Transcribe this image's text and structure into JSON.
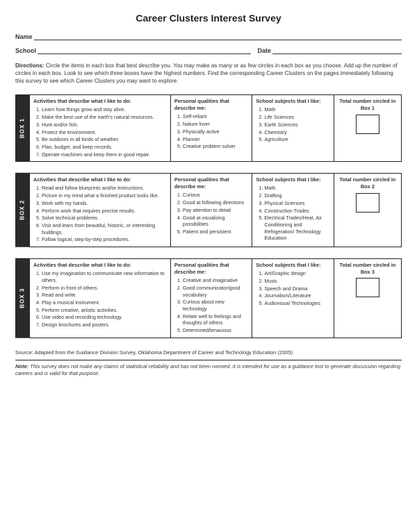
{
  "title": "Career Clusters Interest Survey",
  "fields": {
    "name_label": "Name",
    "school_label": "School",
    "date_label": "Date"
  },
  "directions_label": "Directions:",
  "directions_text": "Circle the items in each box that best describe you. You may make as many or as few circles in each box as you choose. Add up the number of circles in each box. Look to see which three boxes have the highest numbers. Find the corresponding Career Clusters on the pages immediately following this survey to see which Career Clusters you may want to explore.",
  "headers": {
    "activities": "Activities that describe what I like to do:",
    "qualities": "Personal qualities that describe me:",
    "subjects": "School subjects that I like:",
    "total_prefix": "Total number circled in"
  },
  "boxes": [
    {
      "tab": "BOX 1",
      "total_label": "Box 1",
      "activities": [
        "Learn how things grow and stay alive.",
        "Make the best use of the earth's natural resources.",
        "Hunt and/or fish.",
        "Protect the environment.",
        "Be outdoors in all kinds of weather.",
        "Plan, budget, and keep records.",
        "Operate machines and keep them in good repair."
      ],
      "qualities": [
        "Self-reliant",
        "Nature lover",
        "Physically active",
        "Planner",
        "Creative problem solver"
      ],
      "subjects": [
        "Math",
        "Life Sciences",
        "Earth Sciences",
        "Chemistry",
        "Agriculture"
      ]
    },
    {
      "tab": "BOX 2",
      "total_label": "Box 2",
      "activities": [
        "Read and follow blueprints and/or instructions.",
        "Picture in my mind what a finished product looks like.",
        "Work with my hands.",
        "Perform work that requires precise results.",
        "Solve technical problems.",
        "Visit and learn from beautiful, historic, or interesting buildings.",
        "Follow logical, step-by-step procedures."
      ],
      "qualities": [
        "Curious",
        "Good at following directions",
        "Pay attention to detail",
        "Good at visualizing possibilities",
        "Patient and persistent"
      ],
      "subjects": [
        "Math",
        "Drafting",
        "Physical Sciences",
        "Construction Trades",
        "Electrical Trades/Heat, Air Conditioning and Refrigeration/ Technology Education"
      ]
    },
    {
      "tab": "BOX 3",
      "total_label": "Box 3",
      "activities": [
        "Use my imagination to communicate new information to others.",
        "Perform in front of others.",
        "Read and write.",
        "Play a musical instrument.",
        "Perform creative, artistic activities.",
        "Use video and recording technology.",
        "Design brochures and posters."
      ],
      "qualities": [
        "Creative and imaginative",
        "Good communicator/good vocabulary",
        "Curious about new technology",
        "Relate well to feelings and thoughts of others",
        "Determined/tenacious"
      ],
      "subjects": [
        "Art/Graphic design",
        "Music",
        "Speech and Drama",
        "Journalism/Literature",
        "Audiovisual Technologies"
      ]
    }
  ],
  "source": "Source: Adapted from the Guidance Division Survey, Oklahoma Department of Career and Technology Education (2005)",
  "note_label": "Note:",
  "note_text": "This survey does not make any claims of statistical reliability and has not been normed. It is intended for use as a guidance tool to generate discussion regarding careers and is valid for that purpose."
}
